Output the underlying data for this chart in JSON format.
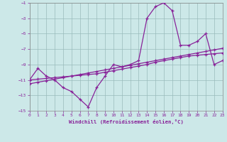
{
  "xlabel": "Windchill (Refroidissement éolien,°C)",
  "background_color": "#cce8e8",
  "grid_color": "#99bbbb",
  "line_color": "#882299",
  "xlim": [
    0,
    23
  ],
  "ylim": [
    -15,
    -1
  ],
  "xticks": [
    0,
    1,
    2,
    3,
    4,
    5,
    6,
    7,
    8,
    9,
    10,
    11,
    12,
    13,
    14,
    15,
    16,
    17,
    18,
    19,
    20,
    21,
    22,
    23
  ],
  "yticks": [
    -15,
    -13,
    -11,
    -9,
    -7,
    -5,
    -3,
    -1
  ],
  "hours": [
    0,
    1,
    2,
    3,
    4,
    5,
    6,
    7,
    8,
    9,
    10,
    11,
    12,
    13,
    14,
    15,
    16,
    17,
    18,
    19,
    20,
    21,
    22,
    23
  ],
  "windchill": [
    -11,
    -9.5,
    -10.5,
    -11,
    -12,
    -12.5,
    -13.5,
    -14.5,
    -12,
    -10.5,
    -9,
    -9.3,
    -9,
    -8.5,
    -3,
    -1.5,
    -1,
    -2,
    -6.5,
    -6.5,
    -6,
    -5,
    -9,
    -8.5
  ],
  "slow_line": [
    -11,
    -10.9,
    -10.8,
    -10.7,
    -10.6,
    -10.5,
    -10.4,
    -10.3,
    -10.2,
    -10.0,
    -9.8,
    -9.6,
    -9.4,
    -9.2,
    -9.0,
    -8.7,
    -8.5,
    -8.3,
    -8.1,
    -7.9,
    -7.8,
    -7.7,
    -7.6,
    -7.5
  ],
  "reg_line": [
    -11.5,
    -11.3,
    -11.1,
    -10.9,
    -10.7,
    -10.5,
    -10.3,
    -10.1,
    -9.9,
    -9.7,
    -9.5,
    -9.3,
    -9.1,
    -8.9,
    -8.7,
    -8.5,
    -8.3,
    -8.1,
    -7.9,
    -7.7,
    -7.5,
    -7.3,
    -7.1,
    -6.9
  ]
}
